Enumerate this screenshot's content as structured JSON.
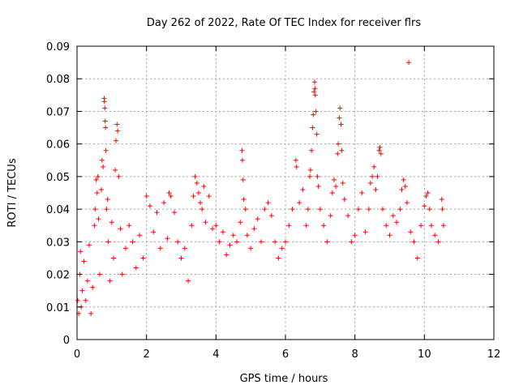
{
  "chart_data": {
    "type": "scatter",
    "title": "Day 262 of 2022, Rate Of TEC Index for receiver flrs",
    "xlabel": "GPS time / hours",
    "ylabel": "ROTI / TECUs",
    "xlim": [
      0,
      12
    ],
    "ylim": [
      0,
      0.09
    ],
    "x_ticks": [
      0,
      2,
      4,
      6,
      8,
      10,
      12
    ],
    "x_tick_labels": [
      "0",
      "2",
      "4",
      "6",
      "8",
      "10",
      "12"
    ],
    "y_ticks": [
      0,
      0.01,
      0.02,
      0.03,
      0.04,
      0.05,
      0.06,
      0.07,
      0.08,
      0.09
    ],
    "y_tick_labels": [
      "0",
      "0.01",
      "0.02",
      "0.03",
      "0.04",
      "0.05",
      "0.06",
      "0.07",
      "0.08",
      "0.09"
    ],
    "grid": true,
    "marker": "+",
    "series": [
      {
        "name": "ROTI",
        "color": "#ff0000",
        "points": [
          [
            0.02,
            0.012
          ],
          [
            0.05,
            0.008
          ],
          [
            0.08,
            0.02
          ],
          [
            0.1,
            0.027
          ],
          [
            0.12,
            0.01
          ],
          [
            0.15,
            0.015
          ],
          [
            0.2,
            0.024
          ],
          [
            0.25,
            0.012
          ],
          [
            0.3,
            0.018
          ],
          [
            0.35,
            0.029
          ],
          [
            0.4,
            0.008
          ],
          [
            0.45,
            0.016
          ],
          [
            0.5,
            0.035
          ],
          [
            0.52,
            0.04
          ],
          [
            0.55,
            0.049
          ],
          [
            0.58,
            0.045
          ],
          [
            0.6,
            0.05
          ],
          [
            0.62,
            0.037
          ],
          [
            0.65,
            0.02
          ],
          [
            0.7,
            0.046
          ],
          [
            0.72,
            0.055
          ],
          [
            0.75,
            0.053
          ],
          [
            0.78,
            0.074
          ],
          [
            0.79,
            0.073
          ],
          [
            0.8,
            0.071
          ],
          [
            0.81,
            0.067
          ],
          [
            0.82,
            0.065
          ],
          [
            0.83,
            0.058
          ],
          [
            0.85,
            0.04
          ],
          [
            0.88,
            0.043
          ],
          [
            0.9,
            0.03
          ],
          [
            0.95,
            0.018
          ],
          [
            1.0,
            0.036
          ],
          [
            1.05,
            0.025
          ],
          [
            1.1,
            0.052
          ],
          [
            1.12,
            0.061
          ],
          [
            1.15,
            0.066
          ],
          [
            1.17,
            0.064
          ],
          [
            1.2,
            0.05
          ],
          [
            1.25,
            0.034
          ],
          [
            1.3,
            0.02
          ],
          [
            1.4,
            0.028
          ],
          [
            1.5,
            0.035
          ],
          [
            1.6,
            0.03
          ],
          [
            1.7,
            0.022
          ],
          [
            1.8,
            0.032
          ],
          [
            1.9,
            0.025
          ],
          [
            2.0,
            0.044
          ],
          [
            2.1,
            0.041
          ],
          [
            2.2,
            0.033
          ],
          [
            2.3,
            0.039
          ],
          [
            2.4,
            0.028
          ],
          [
            2.5,
            0.042
          ],
          [
            2.6,
            0.031
          ],
          [
            2.65,
            0.045
          ],
          [
            2.7,
            0.044
          ],
          [
            2.8,
            0.039
          ],
          [
            2.9,
            0.03
          ],
          [
            3.0,
            0.025
          ],
          [
            3.1,
            0.028
          ],
          [
            3.2,
            0.018
          ],
          [
            3.3,
            0.035
          ],
          [
            3.35,
            0.044
          ],
          [
            3.4,
            0.05
          ],
          [
            3.45,
            0.048
          ],
          [
            3.5,
            0.045
          ],
          [
            3.55,
            0.042
          ],
          [
            3.6,
            0.04
          ],
          [
            3.65,
            0.047
          ],
          [
            3.7,
            0.036
          ],
          [
            3.8,
            0.044
          ],
          [
            3.9,
            0.034
          ],
          [
            4.0,
            0.035
          ],
          [
            4.1,
            0.03
          ],
          [
            4.2,
            0.033
          ],
          [
            4.3,
            0.026
          ],
          [
            4.4,
            0.029
          ],
          [
            4.5,
            0.032
          ],
          [
            4.6,
            0.03
          ],
          [
            4.7,
            0.036
          ],
          [
            4.75,
            0.058
          ],
          [
            4.76,
            0.055
          ],
          [
            4.78,
            0.049
          ],
          [
            4.8,
            0.043
          ],
          [
            4.85,
            0.04
          ],
          [
            4.9,
            0.032
          ],
          [
            5.0,
            0.028
          ],
          [
            5.1,
            0.034
          ],
          [
            5.2,
            0.037
          ],
          [
            5.3,
            0.03
          ],
          [
            5.4,
            0.04
          ],
          [
            5.5,
            0.042
          ],
          [
            5.6,
            0.038
          ],
          [
            5.7,
            0.03
          ],
          [
            5.8,
            0.025
          ],
          [
            5.9,
            0.028
          ],
          [
            6.0,
            0.03
          ],
          [
            6.1,
            0.035
          ],
          [
            6.2,
            0.04
          ],
          [
            6.3,
            0.055
          ],
          [
            6.32,
            0.053
          ],
          [
            6.4,
            0.042
          ],
          [
            6.5,
            0.046
          ],
          [
            6.6,
            0.035
          ],
          [
            6.65,
            0.04
          ],
          [
            6.7,
            0.05
          ],
          [
            6.72,
            0.052
          ],
          [
            6.75,
            0.058
          ],
          [
            6.78,
            0.065
          ],
          [
            6.8,
            0.069
          ],
          [
            6.82,
            0.076
          ],
          [
            6.84,
            0.079
          ],
          [
            6.85,
            0.077
          ],
          [
            6.86,
            0.075
          ],
          [
            6.88,
            0.07
          ],
          [
            6.9,
            0.063
          ],
          [
            6.92,
            0.05
          ],
          [
            6.95,
            0.047
          ],
          [
            7.0,
            0.04
          ],
          [
            7.1,
            0.035
          ],
          [
            7.2,
            0.03
          ],
          [
            7.3,
            0.038
          ],
          [
            7.35,
            0.045
          ],
          [
            7.4,
            0.049
          ],
          [
            7.45,
            0.047
          ],
          [
            7.5,
            0.057
          ],
          [
            7.52,
            0.06
          ],
          [
            7.55,
            0.068
          ],
          [
            7.57,
            0.071
          ],
          [
            7.6,
            0.066
          ],
          [
            7.62,
            0.058
          ],
          [
            7.65,
            0.048
          ],
          [
            7.7,
            0.043
          ],
          [
            7.8,
            0.038
          ],
          [
            7.9,
            0.03
          ],
          [
            8.0,
            0.032
          ],
          [
            8.1,
            0.04
          ],
          [
            8.2,
            0.045
          ],
          [
            8.3,
            0.033
          ],
          [
            8.4,
            0.04
          ],
          [
            8.45,
            0.048
          ],
          [
            8.5,
            0.05
          ],
          [
            8.55,
            0.053
          ],
          [
            8.6,
            0.046
          ],
          [
            8.65,
            0.05
          ],
          [
            8.7,
            0.058
          ],
          [
            8.72,
            0.059
          ],
          [
            8.75,
            0.057
          ],
          [
            8.8,
            0.04
          ],
          [
            8.9,
            0.035
          ],
          [
            9.0,
            0.032
          ],
          [
            9.1,
            0.038
          ],
          [
            9.2,
            0.036
          ],
          [
            9.3,
            0.04
          ],
          [
            9.35,
            0.046
          ],
          [
            9.4,
            0.049
          ],
          [
            9.45,
            0.047
          ],
          [
            9.5,
            0.042
          ],
          [
            9.55,
            0.085
          ],
          [
            9.6,
            0.033
          ],
          [
            9.7,
            0.03
          ],
          [
            9.8,
            0.025
          ],
          [
            9.9,
            0.035
          ],
          [
            10.0,
            0.041
          ],
          [
            10.05,
            0.044
          ],
          [
            10.1,
            0.045
          ],
          [
            10.15,
            0.04
          ],
          [
            10.2,
            0.035
          ],
          [
            10.3,
            0.032
          ],
          [
            10.4,
            0.03
          ],
          [
            10.5,
            0.043
          ],
          [
            10.52,
            0.04
          ],
          [
            10.55,
            0.035
          ]
        ]
      }
    ]
  }
}
